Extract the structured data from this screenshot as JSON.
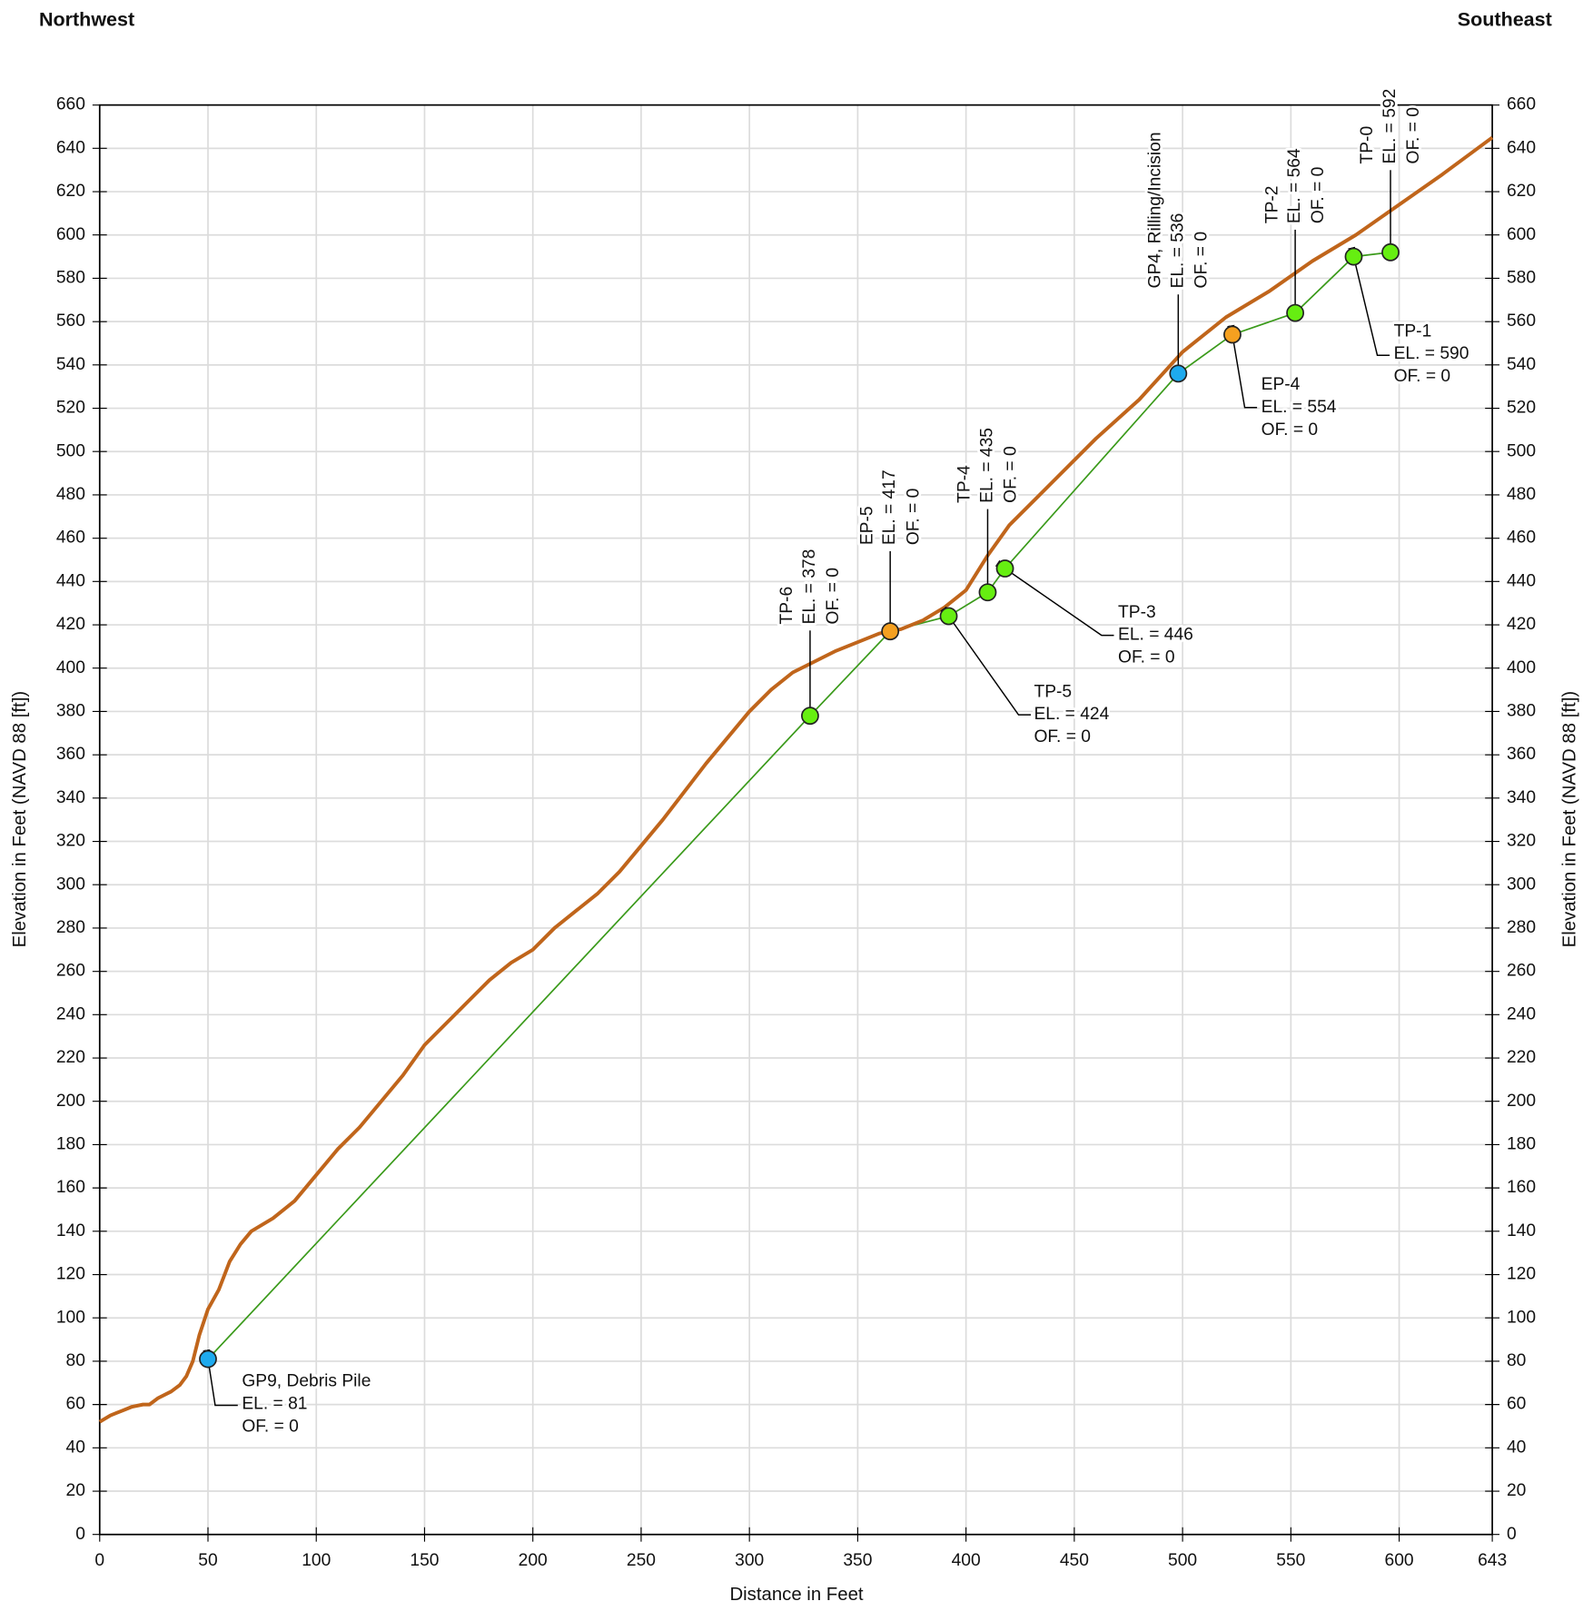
{
  "chart_data": {
    "type": "profile",
    "left_title": "Northwest",
    "right_title": "Southeast",
    "xlabel": "Distance in Feet",
    "ylabel": "Elevation in Feet (NAVD 88 [ft])",
    "y2label": "Elevation in Feet (NAVD 88 [ft])",
    "xlim": [
      0,
      643
    ],
    "xticks": [
      0,
      50,
      100,
      150,
      200,
      250,
      300,
      350,
      400,
      450,
      500,
      550,
      600,
      643
    ],
    "ylim": [
      0,
      660
    ],
    "yticks": [
      0,
      20,
      40,
      60,
      80,
      100,
      120,
      140,
      160,
      180,
      200,
      220,
      240,
      260,
      280,
      300,
      320,
      340,
      360,
      380,
      400,
      420,
      440,
      460,
      480,
      500,
      520,
      540,
      560,
      580,
      600,
      620,
      640,
      660
    ],
    "y2lim": [
      0,
      660
    ],
    "y2ticks": [
      0,
      20,
      40,
      60,
      80,
      100,
      120,
      140,
      160,
      180,
      200,
      220,
      240,
      260,
      280,
      300,
      320,
      340,
      360,
      380,
      400,
      420,
      440,
      460,
      480,
      500,
      520,
      540,
      560,
      580,
      600,
      620,
      640,
      660
    ],
    "grid": true,
    "profile": {
      "color": "#c0651b",
      "x": [
        0,
        5,
        10,
        15,
        20,
        23,
        27,
        33,
        37,
        40,
        43,
        46,
        50,
        55,
        60,
        65,
        70,
        80,
        90,
        100,
        110,
        120,
        130,
        140,
        150,
        160,
        170,
        180,
        190,
        200,
        210,
        220,
        230,
        240,
        260,
        280,
        300,
        310,
        320,
        340,
        360,
        370,
        380,
        390,
        400,
        410,
        420,
        440,
        460,
        480,
        500,
        520,
        540,
        560,
        580,
        600,
        620,
        643
      ],
      "values": [
        52,
        55,
        57,
        59,
        60,
        60,
        63,
        66,
        69,
        73,
        80,
        92,
        104,
        113,
        126,
        134,
        140,
        146,
        154,
        166,
        178,
        188,
        200,
        212,
        226,
        236,
        246,
        256,
        264,
        270,
        280,
        288,
        296,
        306,
        330,
        356,
        380,
        390,
        398,
        408,
        416,
        418,
        422,
        428,
        436,
        452,
        466,
        486,
        506,
        524,
        546,
        562,
        574,
        588,
        600,
        614,
        628,
        645
      ]
    },
    "points": {
      "line_color": "#3a9a1a",
      "labels": [
        "GP9, Debris Pile",
        "TP-6",
        "EP-5",
        "TP-5",
        "TP-4",
        "TP-3",
        "GP4, Rilling/Incision",
        "EP-4",
        "TP-2",
        "TP-1",
        "TP-0"
      ],
      "x": [
        50,
        328,
        365,
        392,
        410,
        418,
        498,
        523,
        552,
        579,
        596
      ],
      "values": [
        81,
        378,
        417,
        424,
        435,
        446,
        536,
        554,
        564,
        590,
        592
      ],
      "value_labels": [
        "EL. = 81",
        "EL. = 378",
        "EL. = 417",
        "EL. = 424",
        "EL. = 435",
        "EL. = 446",
        "EL. = 536",
        "EL. = 554",
        "EL. = 564",
        "EL. = 590",
        "EL. = 592"
      ],
      "offset_labels": [
        "OF. = 0",
        "OF. = 0",
        "OF. = 0",
        "OF. = 0",
        "OF. = 0",
        "OF. = 0",
        "OF. = 0",
        "OF. = 0",
        "OF. = 0",
        "OF. = 0",
        "OF. = 0"
      ],
      "colors": [
        "#1eaaee",
        "#66ee11",
        "#f5a020",
        "#66ee11",
        "#66ee11",
        "#66ee11",
        "#1eaaee",
        "#f5a020",
        "#66ee11",
        "#66ee11",
        "#66ee11"
      ]
    }
  }
}
